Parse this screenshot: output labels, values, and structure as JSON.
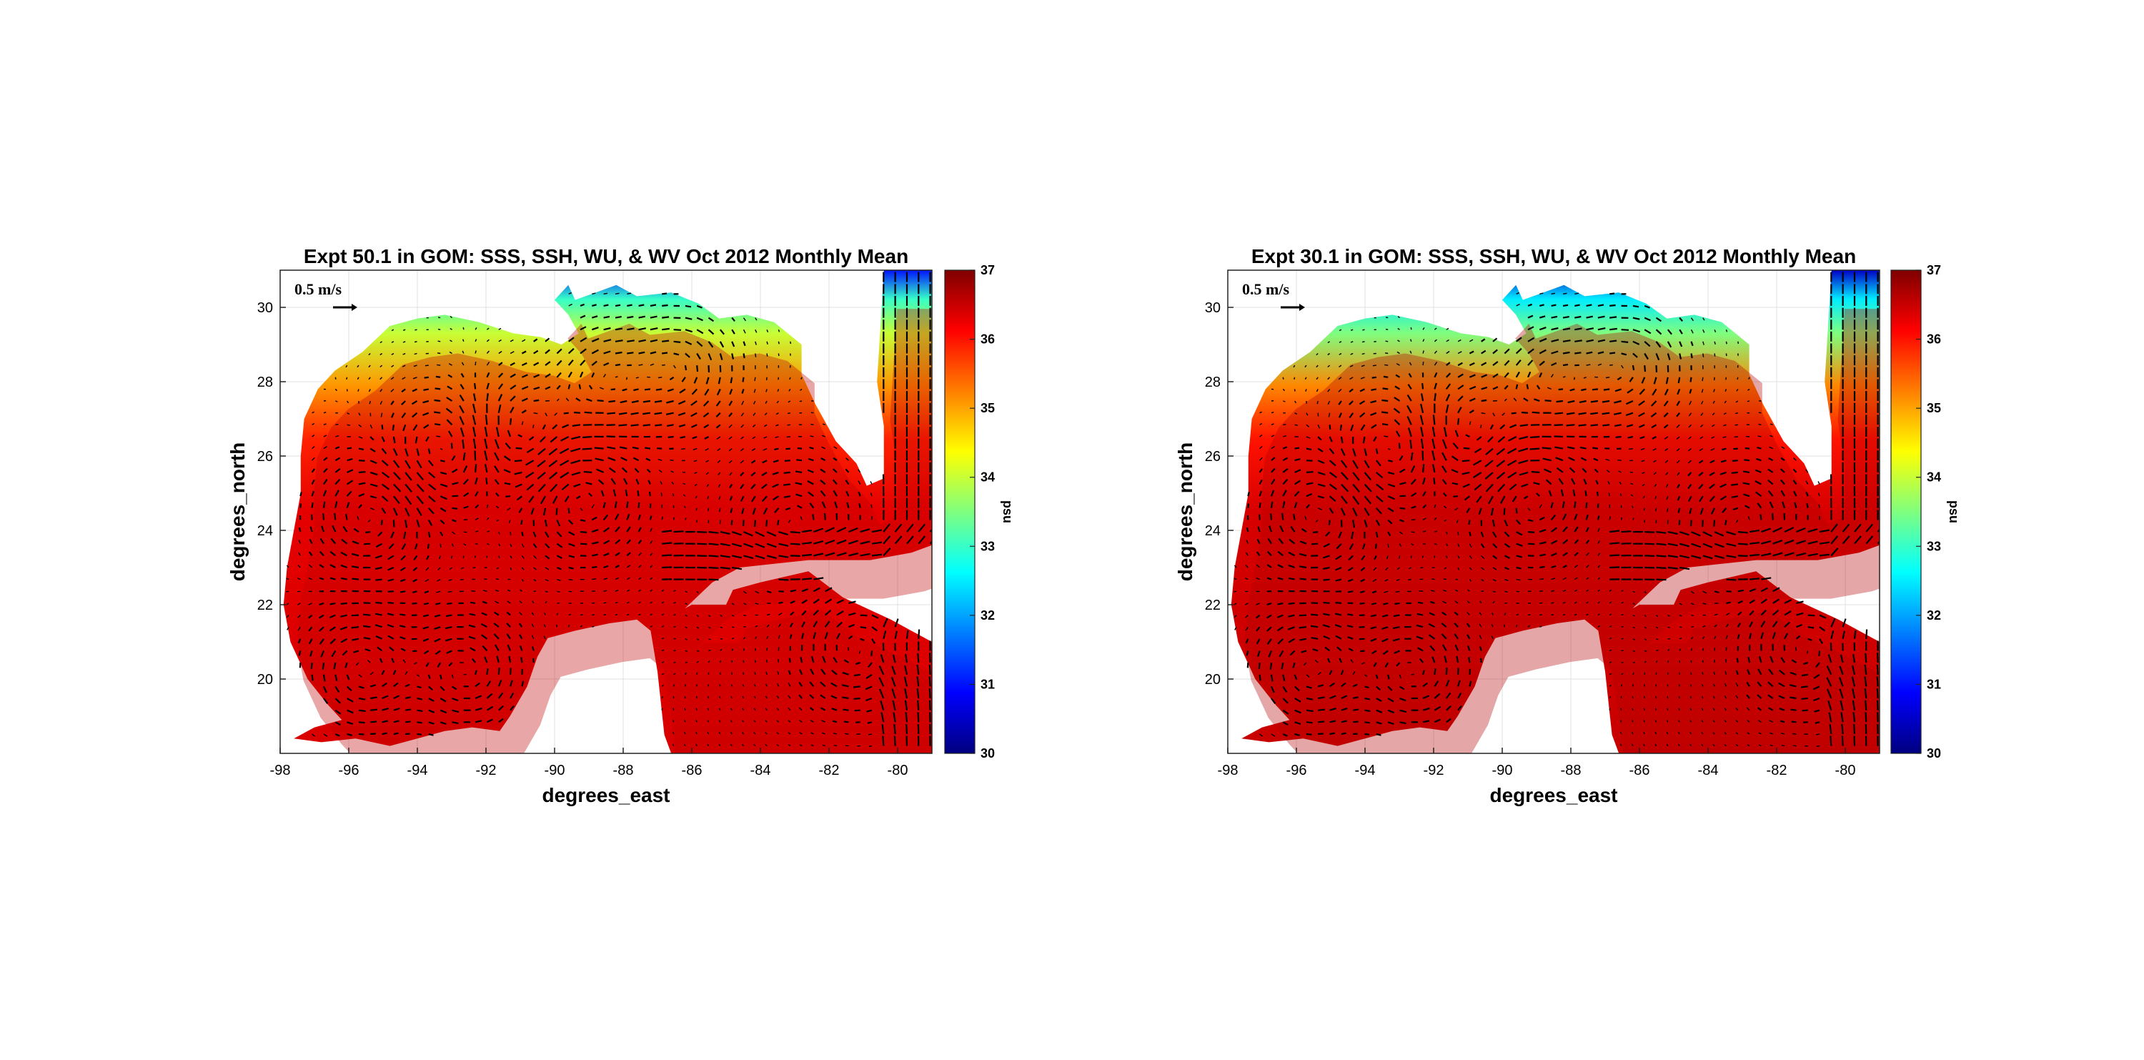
{
  "colormap": [
    "#00007f",
    "#0000ff",
    "#007fff",
    "#00ffff",
    "#7fff7f",
    "#ffff00",
    "#ff7f00",
    "#ff0000",
    "#7f0000"
  ],
  "chart_data": [
    {
      "type": "heatmap",
      "title": "Expt 50.1 in GOM: SSS, SSH, WU, & WV Oct 2012 Monthly Mean",
      "xlabel": "degrees_east",
      "ylabel": "degrees_north",
      "xlim": [
        -98,
        -79
      ],
      "ylim": [
        18,
        31
      ],
      "x_ticks": [
        -98,
        -96,
        -94,
        -92,
        -90,
        -88,
        -86,
        -84,
        -82,
        -80
      ],
      "y_ticks": [
        20,
        22,
        24,
        26,
        28,
        30
      ],
      "grid": true,
      "colorbar": {
        "label": "psu",
        "range": [
          30,
          37
        ],
        "ticks": [
          30,
          31,
          32,
          33,
          34,
          35,
          36,
          37
        ],
        "position": "right"
      },
      "vector_scale_label": "0.5 m/s",
      "coastal_salinity_psu": 33.5,
      "open_gulf_salinity_psu": 36.3
    },
    {
      "type": "heatmap",
      "title": "Expt 30.1 in GOM: SSS, SSH, WU, & WV Oct 2012 Monthly Mean",
      "xlabel": "degrees_east",
      "ylabel": "degrees_north",
      "xlim": [
        -98,
        -79
      ],
      "ylim": [
        18,
        31
      ],
      "x_ticks": [
        -98,
        -96,
        -94,
        -92,
        -90,
        -88,
        -86,
        -84,
        -82,
        -80
      ],
      "y_ticks": [
        20,
        22,
        24,
        26,
        28,
        30
      ],
      "grid": true,
      "colorbar": {
        "label": "psu",
        "range": [
          30,
          37
        ],
        "ticks": [
          30,
          31,
          32,
          33,
          34,
          35,
          36,
          37
        ],
        "position": "right"
      },
      "vector_scale_label": "0.5 m/s",
      "coastal_salinity_psu": 33.0,
      "open_gulf_salinity_psu": 36.4
    }
  ]
}
